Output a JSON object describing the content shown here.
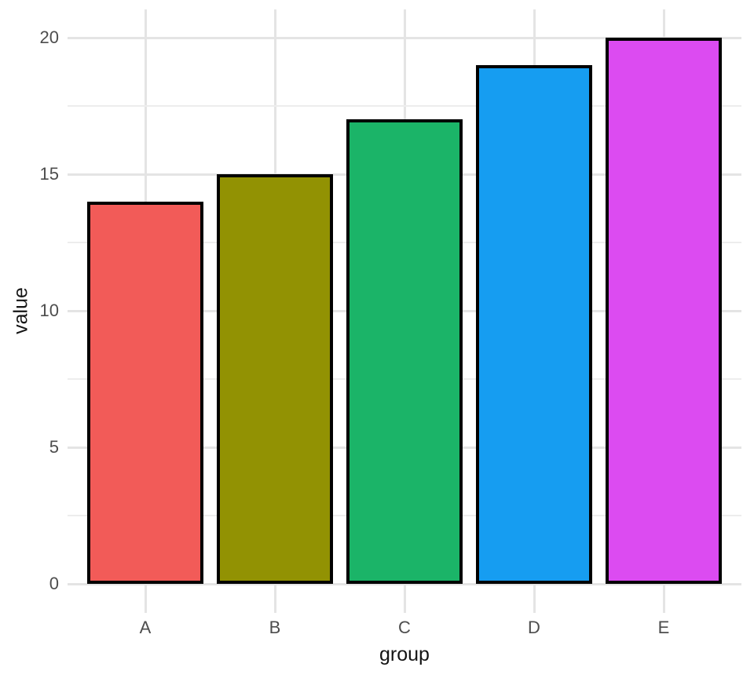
{
  "chart_data": {
    "type": "bar",
    "title": "",
    "xlabel": "group",
    "ylabel": "value",
    "categories": [
      "A",
      "B",
      "C",
      "D",
      "E"
    ],
    "values": [
      14,
      15,
      17,
      19,
      20
    ],
    "bar_colors": [
      "#F25B58",
      "#929203",
      "#1BB468",
      "#169DF1",
      "#DC4BF1"
    ],
    "bar_border_color": "#000000",
    "ylim": [
      0,
      20
    ],
    "yticks": [
      0,
      5,
      10,
      15,
      20
    ],
    "ytick_labels": [
      "0",
      "5",
      "10",
      "15",
      "20"
    ],
    "yminor_ticks": [
      2.5,
      7.5,
      12.5,
      17.5
    ],
    "grid": "on",
    "legend_position": "none",
    "background_color": "#FFFFFF",
    "grid_major_color": "#E4E4E4",
    "grid_minor_color": "#EDEDED",
    "tick_label_color": "#4D4D4D",
    "axis_title_color": "#141414"
  }
}
